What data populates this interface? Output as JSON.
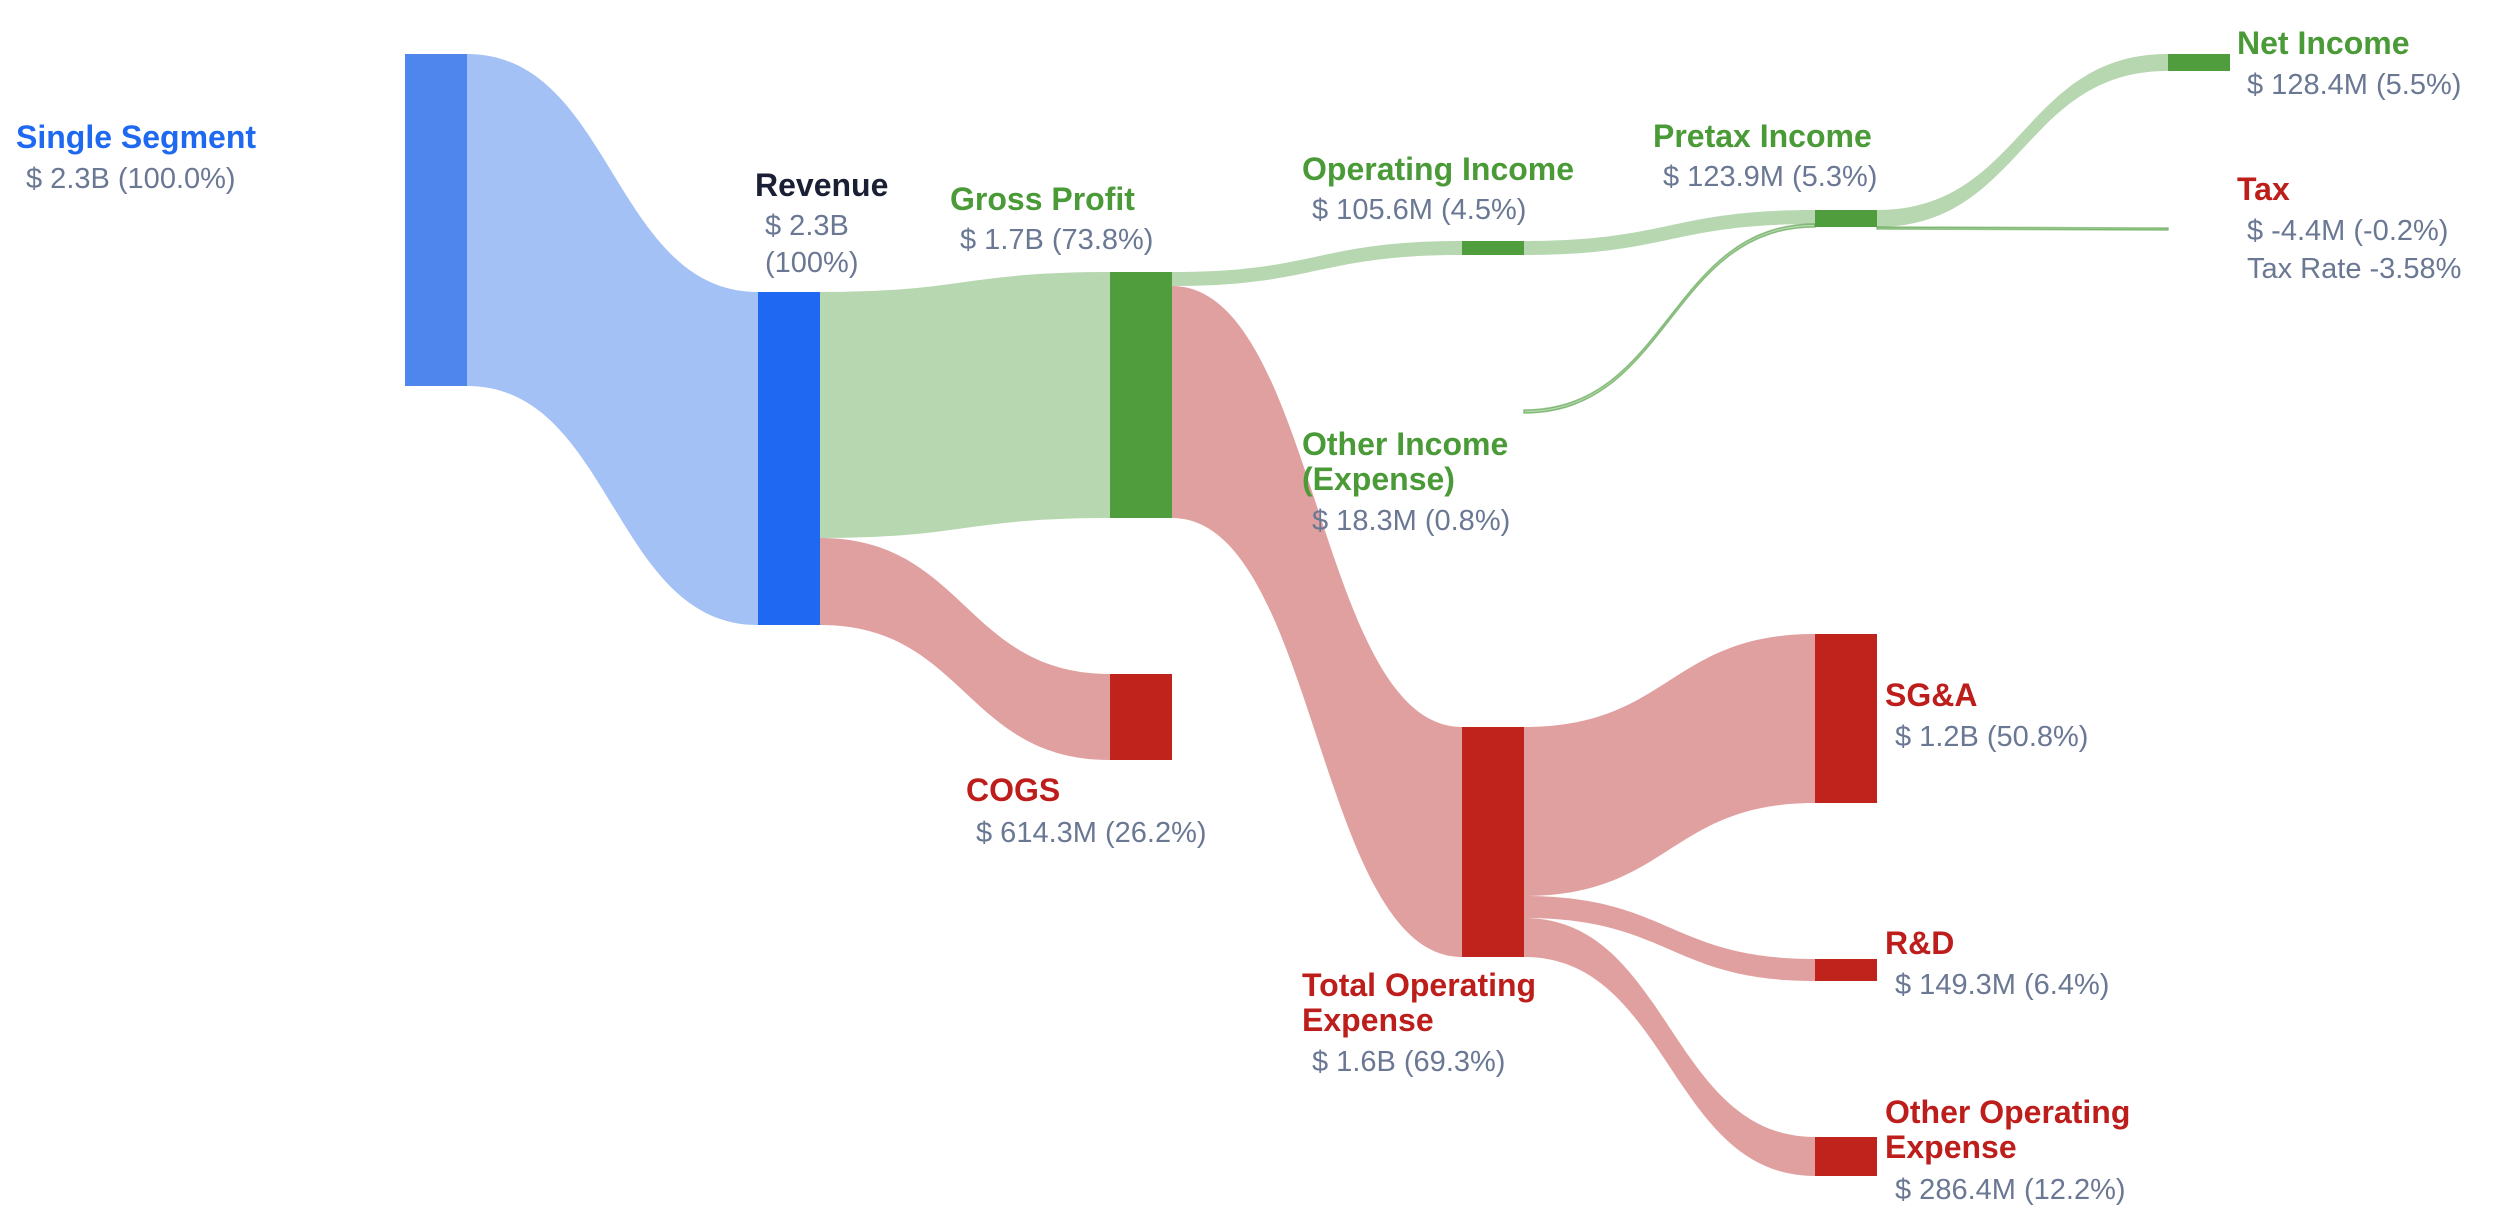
{
  "chart_data": {
    "type": "sankey",
    "colors": {
      "blue_node": "#4f86ee",
      "blue_node_strong": "#1f69f2",
      "blue_link": "#a4c1f6",
      "green_node": "#4f9d3d",
      "green_link": "#b6d7b0",
      "red_node": "#bf231b",
      "red_link": "#e0a09f",
      "title_blue": "#1f69f2",
      "title_dark": "#1a1f36",
      "title_green": "#4a9a38",
      "title_red": "#bd1e1b",
      "value_gray": "#6b7894"
    },
    "nodes": [
      {
        "id": "segment",
        "title": "Single Segment",
        "value_label": "$ 2.3B (100.0%)",
        "value": 2300,
        "share": 100.0
      },
      {
        "id": "revenue",
        "title": "Revenue",
        "value_label": "$ 2.3B",
        "value_label_2": "(100%)",
        "value": 2300,
        "share": 100
      },
      {
        "id": "gross_profit",
        "title": "Gross Profit",
        "value_label": "$ 1.7B (73.8%)",
        "value": 1700,
        "share": 73.8
      },
      {
        "id": "cogs",
        "title": "COGS",
        "value_label": "$ 614.3M (26.2%)",
        "value": 614.3,
        "share": 26.2
      },
      {
        "id": "operating_income",
        "title": "Operating Income",
        "value_label": "$ 105.6M (4.5%)",
        "value": 105.6,
        "share": 4.5
      },
      {
        "id": "other_income",
        "title": "Other Income",
        "title_2": "(Expense)",
        "value_label": "$ 18.3M (0.8%)",
        "value": 18.3,
        "share": 0.8
      },
      {
        "id": "total_opex",
        "title": "Total Operating",
        "title_2": "Expense",
        "value_label": "$ 1.6B (69.3%)",
        "value": 1600,
        "share": 69.3
      },
      {
        "id": "pretax_income",
        "title": "Pretax Income",
        "value_label": "$ 123.9M (5.3%)",
        "value": 123.9,
        "share": 5.3
      },
      {
        "id": "net_income",
        "title": "Net Income",
        "value_label": "$ 128.4M (5.5%)",
        "value": 128.4,
        "share": 5.5
      },
      {
        "id": "tax",
        "title": "Tax",
        "value_label": "$ -4.4M (-0.2%)",
        "value_label_2": "Tax Rate -3.58%",
        "value": -4.4,
        "share": -0.2
      },
      {
        "id": "sga",
        "title": "SG&A",
        "value_label": "$ 1.2B (50.8%)",
        "value": 1200,
        "share": 50.8
      },
      {
        "id": "rnd",
        "title": "R&D",
        "value_label": "$ 149.3M (6.4%)",
        "value": 149.3,
        "share": 6.4
      },
      {
        "id": "other_opex",
        "title": "Other Operating",
        "title_2": "Expense",
        "value_label": "$ 286.4M (12.2%)",
        "value": 286.4,
        "share": 12.2
      }
    ],
    "links": [
      {
        "source": "segment",
        "target": "revenue",
        "share": 100.0
      },
      {
        "source": "revenue",
        "target": "gross_profit",
        "share": 73.8
      },
      {
        "source": "revenue",
        "target": "cogs",
        "share": 26.2
      },
      {
        "source": "gross_profit",
        "target": "operating_income",
        "share": 4.5
      },
      {
        "source": "gross_profit",
        "target": "total_opex",
        "share": 69.3
      },
      {
        "source": "operating_income",
        "target": "pretax_income",
        "share": 4.5
      },
      {
        "source": "other_income",
        "target": "pretax_income",
        "share": 0.8
      },
      {
        "source": "pretax_income",
        "target": "net_income",
        "share": 5.5
      },
      {
        "source": "pretax_income",
        "target": "tax",
        "share": -0.2
      },
      {
        "source": "total_opex",
        "target": "sga",
        "share": 50.8
      },
      {
        "source": "total_opex",
        "target": "rnd",
        "share": 6.4
      },
      {
        "source": "total_opex",
        "target": "other_opex",
        "share": 12.2
      }
    ]
  }
}
